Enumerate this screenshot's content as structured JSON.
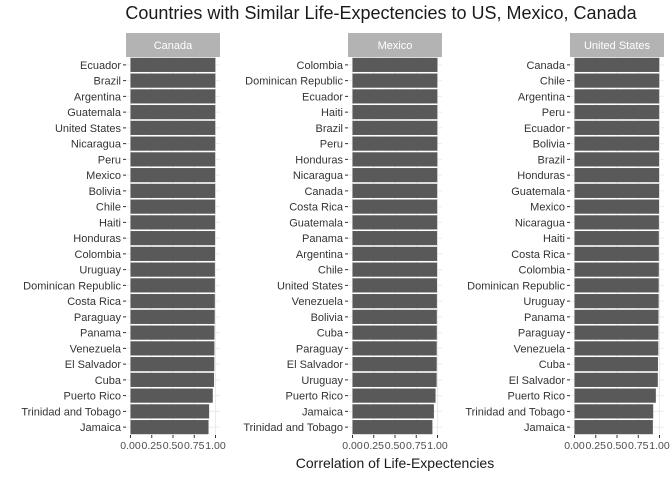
{
  "title": "Countries with Similar Life-Expectencies to US, Mexico, Canada",
  "chart_data": {
    "type": "bar",
    "orientation": "horizontal",
    "title": "Countries with Similar Life-Expectencies to US, Mexico, Canada",
    "xlabel": "Correlation of Life-Expectencies",
    "ylabel": "",
    "xlim": [
      0,
      1
    ],
    "x_ticks": [
      "0.00",
      "0.25",
      "0.50",
      "0.75",
      "1.00"
    ],
    "grid": true,
    "panels": [
      {
        "name": "Canada",
        "categories": [
          "Ecuador",
          "Brazil",
          "Argentina",
          "Guatemala",
          "United States",
          "Nicaragua",
          "Peru",
          "Mexico",
          "Bolivia",
          "Chile",
          "Haiti",
          "Honduras",
          "Colombia",
          "Uruguay",
          "Dominican Republic",
          "Costa Rica",
          "Paraguay",
          "Panama",
          "Venezuela",
          "El Salvador",
          "Cuba",
          "Puerto Rico",
          "Trinidad and Tobago",
          "Jamaica"
        ],
        "values": [
          0.998,
          0.998,
          0.998,
          0.997,
          0.997,
          0.997,
          0.996,
          0.996,
          0.996,
          0.996,
          0.995,
          0.995,
          0.994,
          0.993,
          0.993,
          0.992,
          0.991,
          0.988,
          0.987,
          0.986,
          0.983,
          0.968,
          0.925,
          0.918
        ]
      },
      {
        "name": "Mexico",
        "categories": [
          "Colombia",
          "Dominican Republic",
          "Ecuador",
          "Haiti",
          "Brazil",
          "Peru",
          "Honduras",
          "Nicaragua",
          "Canada",
          "Costa Rica",
          "Guatemala",
          "Panama",
          "Argentina",
          "Chile",
          "United States",
          "Venezuela",
          "Bolivia",
          "Cuba",
          "Paraguay",
          "El Salvador",
          "Uruguay",
          "Puerto Rico",
          "Jamaica",
          "Trinidad and Tobago"
        ],
        "values": [
          0.999,
          0.998,
          0.998,
          0.998,
          0.998,
          0.998,
          0.998,
          0.997,
          0.996,
          0.996,
          0.996,
          0.995,
          0.995,
          0.995,
          0.994,
          0.993,
          0.992,
          0.992,
          0.991,
          0.991,
          0.99,
          0.977,
          0.958,
          0.94
        ]
      },
      {
        "name": "United States",
        "categories": [
          "Canada",
          "Chile",
          "Argentina",
          "Peru",
          "Ecuador",
          "Bolivia",
          "Brazil",
          "Honduras",
          "Guatemala",
          "Mexico",
          "Nicaragua",
          "Haiti",
          "Costa Rica",
          "Colombia",
          "Dominican Republic",
          "Uruguay",
          "Panama",
          "Paraguay",
          "Venezuela",
          "Cuba",
          "El Salvador",
          "Puerto Rico",
          "Trinidad and Tobago",
          "Jamaica"
        ],
        "values": [
          0.997,
          0.997,
          0.996,
          0.996,
          0.996,
          0.995,
          0.995,
          0.995,
          0.995,
          0.994,
          0.993,
          0.992,
          0.992,
          0.992,
          0.991,
          0.99,
          0.988,
          0.987,
          0.986,
          0.982,
          0.98,
          0.957,
          0.926,
          0.922
        ]
      }
    ]
  }
}
